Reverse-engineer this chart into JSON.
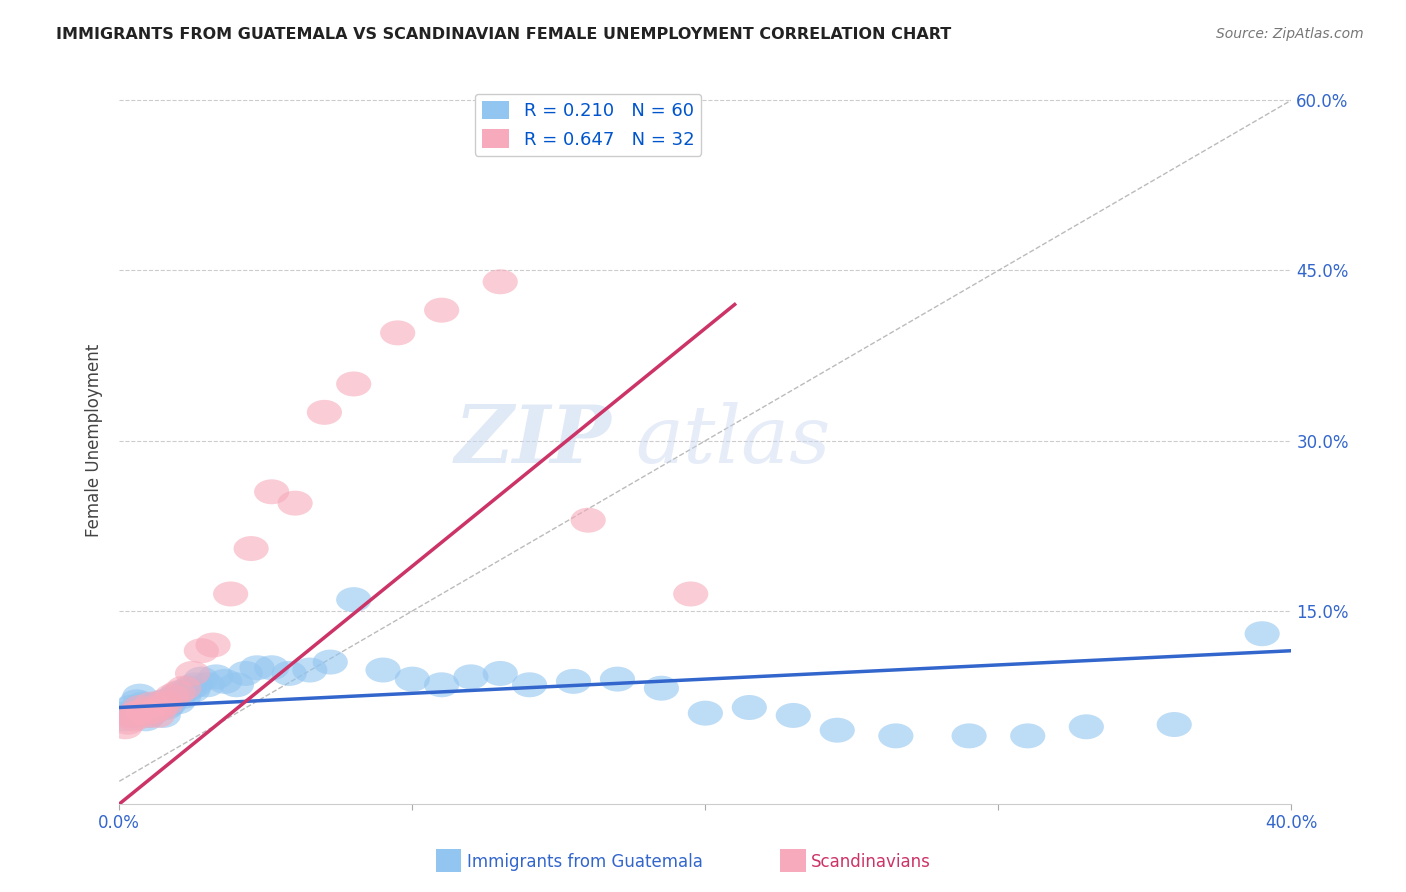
{
  "title": "IMMIGRANTS FROM GUATEMALA VS SCANDINAVIAN FEMALE UNEMPLOYMENT CORRELATION CHART",
  "source": "Source: ZipAtlas.com",
  "ylabel": "Female Unemployment",
  "xlim": [
    0.0,
    0.4
  ],
  "ylim": [
    -0.02,
    0.62
  ],
  "xtick_labels": [
    "0.0%",
    "",
    "",
    "",
    "40.0%"
  ],
  "xtick_vals": [
    0.0,
    0.1,
    0.2,
    0.3,
    0.4
  ],
  "ytick_labels": [
    "15.0%",
    "30.0%",
    "45.0%",
    "60.0%"
  ],
  "ytick_vals": [
    0.15,
    0.3,
    0.45,
    0.6
  ],
  "R1": 0.21,
  "N1": 60,
  "R2": 0.647,
  "N2": 32,
  "color1": "#92C5F0",
  "color2": "#F7AABB",
  "trend1_color": "#3366CC",
  "trend2_color": "#CC3366",
  "legend_labels": [
    "Immigrants from Guatemala",
    "Scandinavians"
  ],
  "blue_scatter_x": [
    0.002,
    0.003,
    0.004,
    0.005,
    0.006,
    0.006,
    0.007,
    0.007,
    0.008,
    0.008,
    0.009,
    0.01,
    0.01,
    0.011,
    0.012,
    0.013,
    0.014,
    0.015,
    0.015,
    0.016,
    0.017,
    0.018,
    0.019,
    0.02,
    0.021,
    0.022,
    0.024,
    0.025,
    0.026,
    0.028,
    0.03,
    0.033,
    0.036,
    0.04,
    0.043,
    0.047,
    0.052,
    0.058,
    0.065,
    0.072,
    0.08,
    0.09,
    0.1,
    0.11,
    0.12,
    0.13,
    0.14,
    0.155,
    0.17,
    0.185,
    0.2,
    0.215,
    0.23,
    0.245,
    0.265,
    0.29,
    0.31,
    0.33,
    0.36,
    0.39
  ],
  "blue_scatter_y": [
    0.055,
    0.06,
    0.065,
    0.058,
    0.062,
    0.07,
    0.065,
    0.075,
    0.068,
    0.06,
    0.055,
    0.065,
    0.058,
    0.06,
    0.062,
    0.068,
    0.065,
    0.058,
    0.07,
    0.065,
    0.068,
    0.072,
    0.075,
    0.07,
    0.078,
    0.075,
    0.082,
    0.08,
    0.085,
    0.09,
    0.085,
    0.092,
    0.088,
    0.085,
    0.095,
    0.1,
    0.1,
    0.095,
    0.098,
    0.105,
    0.16,
    0.098,
    0.09,
    0.085,
    0.092,
    0.095,
    0.085,
    0.088,
    0.09,
    0.082,
    0.06,
    0.065,
    0.058,
    0.045,
    0.04,
    0.04,
    0.04,
    0.048,
    0.05,
    0.13
  ],
  "pink_scatter_x": [
    0.002,
    0.003,
    0.004,
    0.005,
    0.006,
    0.007,
    0.008,
    0.009,
    0.01,
    0.011,
    0.012,
    0.013,
    0.014,
    0.015,
    0.016,
    0.018,
    0.02,
    0.022,
    0.025,
    0.028,
    0.032,
    0.038,
    0.045,
    0.052,
    0.06,
    0.07,
    0.08,
    0.095,
    0.11,
    0.13,
    0.16,
    0.195
  ],
  "pink_scatter_y": [
    0.048,
    0.052,
    0.058,
    0.055,
    0.06,
    0.065,
    0.062,
    0.06,
    0.058,
    0.068,
    0.062,
    0.058,
    0.065,
    0.07,
    0.068,
    0.075,
    0.078,
    0.082,
    0.095,
    0.115,
    0.12,
    0.165,
    0.205,
    0.255,
    0.245,
    0.325,
    0.35,
    0.395,
    0.415,
    0.44,
    0.23,
    0.165
  ],
  "blue_trend_x": [
    0.0,
    0.4
  ],
  "blue_trend_y": [
    0.065,
    0.115
  ],
  "pink_trend_x": [
    0.0,
    0.21
  ],
  "pink_trend_y": [
    -0.02,
    0.42
  ]
}
